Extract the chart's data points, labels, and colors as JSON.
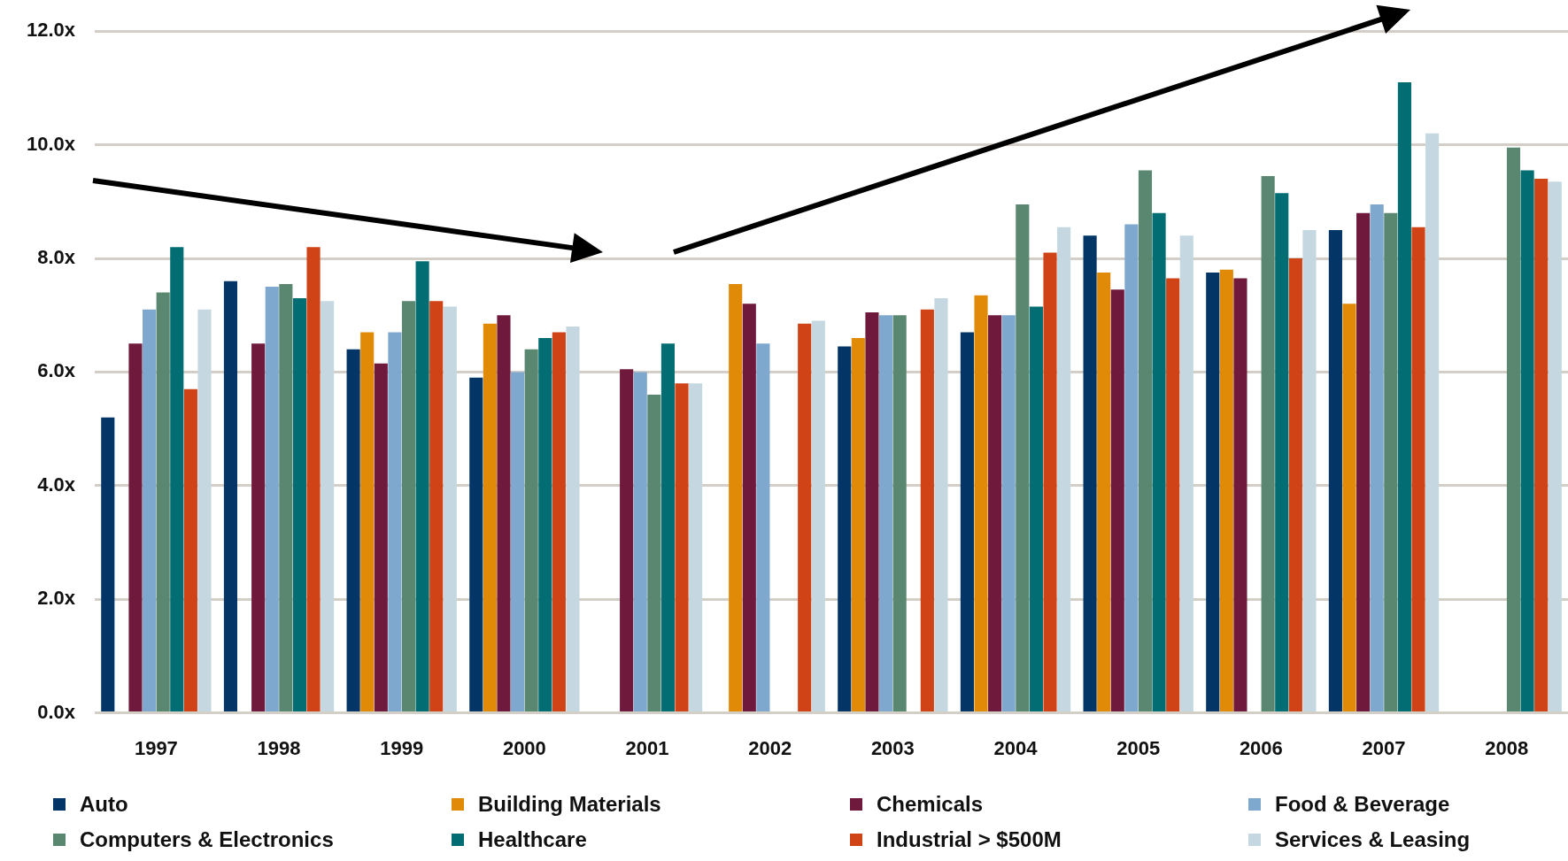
{
  "chart_data": {
    "type": "bar",
    "categories": [
      "1997",
      "1998",
      "1999",
      "2000",
      "2001",
      "2002",
      "2003",
      "2004",
      "2005",
      "2006",
      "2007",
      "2008"
    ],
    "series": [
      {
        "name": "Auto",
        "color": "#033567",
        "values": [
          5.2,
          7.6,
          6.4,
          5.9,
          null,
          null,
          6.45,
          6.7,
          8.4,
          7.75,
          8.5,
          null
        ]
      },
      {
        "name": "Building Materials",
        "color": "#e08a07",
        "values": [
          null,
          null,
          6.7,
          6.85,
          null,
          7.55,
          6.6,
          7.35,
          7.75,
          7.8,
          7.2,
          null
        ]
      },
      {
        "name": "Chemicals",
        "color": "#6f1a3d",
        "values": [
          6.5,
          6.5,
          6.15,
          7.0,
          6.05,
          7.2,
          7.05,
          7.0,
          7.45,
          7.65,
          8.8,
          null
        ]
      },
      {
        "name": "Food & Beverage",
        "color": "#7fa8cf",
        "values": [
          7.1,
          7.5,
          6.7,
          6.0,
          6.0,
          6.5,
          7.0,
          7.0,
          8.6,
          null,
          8.95,
          null
        ]
      },
      {
        "name": "Computers & Electronics",
        "color": "#5a8770",
        "values": [
          7.4,
          7.55,
          7.25,
          6.4,
          5.6,
          null,
          7.0,
          8.95,
          9.55,
          9.45,
          8.8,
          9.95
        ]
      },
      {
        "name": "Healthcare",
        "color": "#026e73",
        "values": [
          8.2,
          7.3,
          7.95,
          6.6,
          6.5,
          null,
          null,
          7.15,
          8.8,
          9.15,
          11.1,
          9.55
        ]
      },
      {
        "name": "Industrial > $500M",
        "color": "#d04316",
        "values": [
          5.7,
          8.2,
          7.25,
          6.7,
          5.8,
          6.85,
          7.1,
          8.1,
          7.65,
          8.0,
          8.55,
          9.4
        ]
      },
      {
        "name": "Services & Leasing",
        "color": "#c5d8e2",
        "values": [
          7.1,
          7.25,
          7.15,
          6.8,
          5.8,
          6.9,
          7.3,
          8.55,
          8.4,
          8.5,
          10.2,
          9.35
        ]
      }
    ],
    "ylim": [
      0,
      12
    ],
    "yticks": [
      {
        "value": 0,
        "label": "0.0x"
      },
      {
        "value": 2,
        "label": "2.0x"
      },
      {
        "value": 4,
        "label": "4.0x"
      },
      {
        "value": 6,
        "label": "6.0x"
      },
      {
        "value": 8,
        "label": "8.0x"
      },
      {
        "value": 10,
        "label": "10.0x"
      },
      {
        "value": 12,
        "label": "12.0x"
      }
    ],
    "grid": "y",
    "legend": "bottom"
  }
}
